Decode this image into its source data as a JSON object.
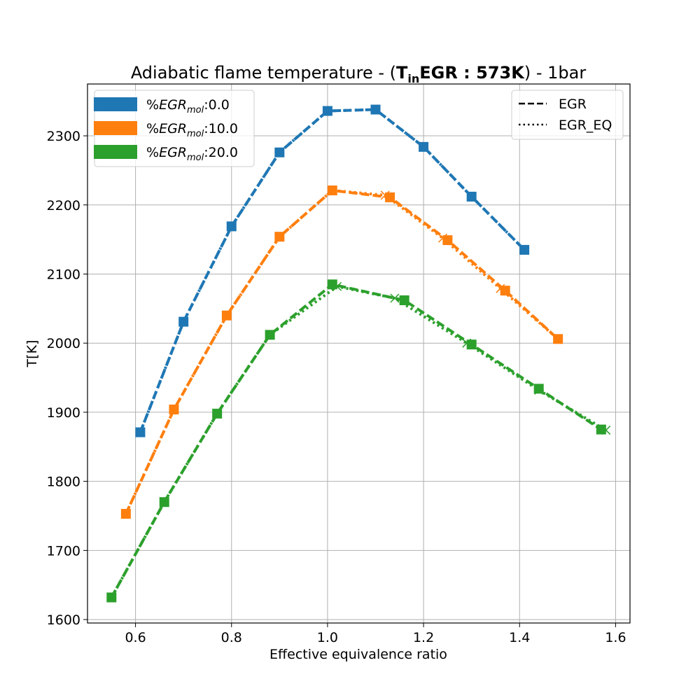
{
  "chart_data": {
    "type": "line",
    "title": {
      "prefix": "Adiabatic flame temperature - (",
      "t": "T",
      "t_sub": "in",
      "bold_rest": "EGR : 573K",
      "suffix": ") - 1bar"
    },
    "xlabel": "Effective equivalence ratio",
    "ylabel": "T[K]",
    "xlim": [
      0.5,
      1.63
    ],
    "ylim": [
      1595,
      2375
    ],
    "xticks": [
      0.6,
      0.8,
      1.0,
      1.2,
      1.4,
      1.6
    ],
    "xtick_labels": [
      "0.6",
      "0.8",
      "1.0",
      "1.2",
      "1.4",
      "1.6"
    ],
    "yticks": [
      1600,
      1700,
      1800,
      1900,
      2000,
      2100,
      2200,
      2300
    ],
    "ytick_labels": [
      "1600",
      "1700",
      "1800",
      "1900",
      "2000",
      "2100",
      "2200",
      "2300"
    ],
    "grid": true,
    "color_legend": {
      "placement": "top-left",
      "entries": [
        {
          "prefix": "%",
          "var": "EGR",
          "sub": "mol",
          "suffix": ":0.0",
          "color": "#1f77b4"
        },
        {
          "prefix": "%",
          "var": "EGR",
          "sub": "mol",
          "suffix": ":10.0",
          "color": "#ff7f0e"
        },
        {
          "prefix": "%",
          "var": "EGR",
          "sub": "mol",
          "suffix": ":20.0",
          "color": "#2ca02c"
        }
      ]
    },
    "style_legend": {
      "placement": "top-right",
      "entries": [
        {
          "label": "EGR",
          "style": "dashed"
        },
        {
          "label": "EGR_EQ",
          "style": "dotted"
        }
      ]
    },
    "series": [
      {
        "name": "EGR",
        "egr_pct": "0.0",
        "style": "dashed",
        "marker": "square",
        "color": "#1f77b4",
        "x": [
          0.61,
          0.7,
          0.8,
          0.9,
          1.0,
          1.1,
          1.2,
          1.3,
          1.41
        ],
        "y": [
          1871,
          2031,
          2169,
          2276,
          2336,
          2338,
          2284,
          2212,
          2135
        ]
      },
      {
        "name": "EGR_EQ",
        "egr_pct": "0.0",
        "style": "dotted",
        "marker": "x",
        "color": "#1f77b4",
        "x": [
          0.61,
          0.7,
          0.8,
          0.9,
          1.0,
          1.1,
          1.2,
          1.3,
          1.41
        ],
        "y": [
          1871,
          2031,
          2169,
          2276,
          2336,
          2338,
          2284,
          2212,
          2135
        ]
      },
      {
        "name": "EGR",
        "egr_pct": "10.0",
        "style": "dashed",
        "marker": "square",
        "color": "#ff7f0e",
        "x": [
          0.58,
          0.68,
          0.79,
          0.9,
          1.01,
          1.13,
          1.25,
          1.37,
          1.48
        ],
        "y": [
          1753,
          1904,
          2040,
          2154,
          2221,
          2211,
          2149,
          2076,
          2006
        ]
      },
      {
        "name": "EGR_EQ",
        "egr_pct": "10.0",
        "style": "dotted",
        "marker": "x",
        "color": "#ff7f0e",
        "x": [
          0.58,
          0.68,
          0.79,
          0.9,
          1.01,
          1.12,
          1.24,
          1.36,
          1.48
        ],
        "y": [
          1753,
          1904,
          2040,
          2154,
          2221,
          2214,
          2152,
          2079,
          2006
        ]
      },
      {
        "name": "EGR",
        "egr_pct": "20.0",
        "style": "dashed",
        "marker": "square",
        "color": "#2ca02c",
        "x": [
          0.55,
          0.66,
          0.77,
          0.88,
          1.01,
          1.16,
          1.3,
          1.44,
          1.57
        ],
        "y": [
          1632,
          1770,
          1898,
          2012,
          2085,
          2062,
          1998,
          1934,
          1875
        ]
      },
      {
        "name": "EGR_EQ",
        "egr_pct": "20.0",
        "style": "dotted",
        "marker": "x",
        "color": "#2ca02c",
        "x": [
          0.55,
          0.66,
          0.77,
          0.88,
          1.02,
          1.14,
          1.29,
          1.44,
          1.58
        ],
        "y": [
          1632,
          1770,
          1898,
          2012,
          2082,
          2065,
          2000,
          1932,
          1874
        ]
      }
    ]
  }
}
